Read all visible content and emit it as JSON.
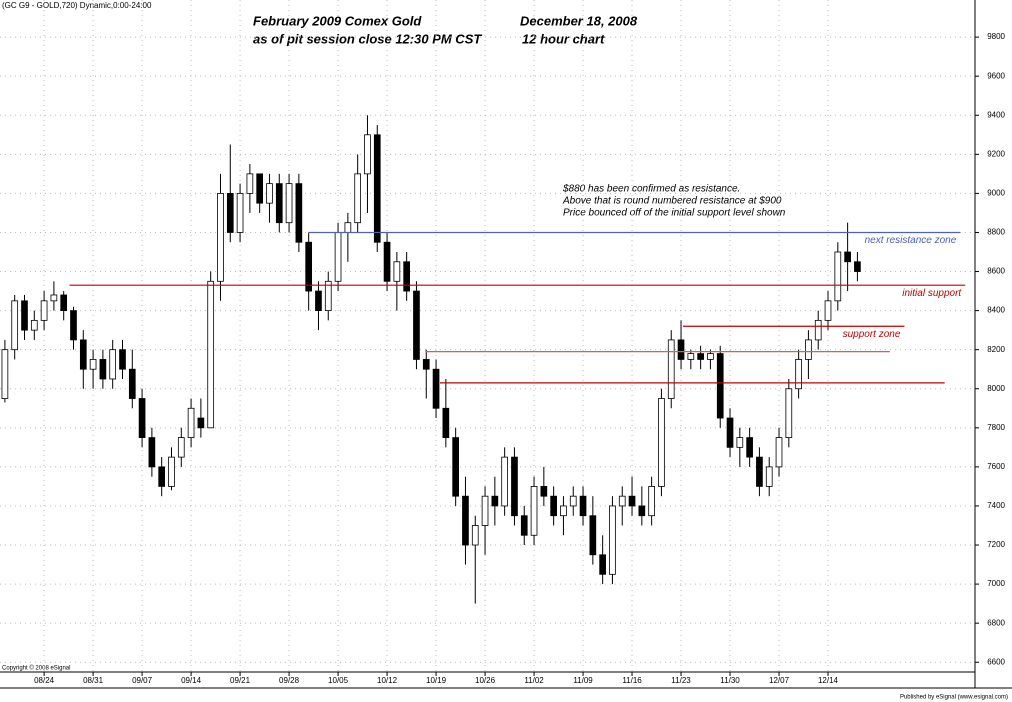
{
  "chart_data": {
    "type": "candlestick",
    "header": "(GC G9 - GOLD,720) Dynamic,0:00-24:00",
    "title": "February 2009 Comex Gold",
    "subtitle": "as of pit session close 12:30 PM CST",
    "date": "December 18, 2008",
    "timeframe": "12 hour chart",
    "notes": [
      "$880 has been confirmed as resistance.",
      "Above that is round numbered resistance at $900",
      "Price bounced off of the initial support level shown"
    ],
    "copyright": "Copyright © 2008 eSignal",
    "publisher": "Published by eSignal (www.esignal.com)",
    "up_color": "#ffffff",
    "down_color": "#000000",
    "grid": true,
    "xlim": [
      -0.5,
      99
    ],
    "ylim": [
      6550,
      9990
    ],
    "xticks": [
      {
        "value": 4,
        "label": "08/24"
      },
      {
        "value": 9,
        "label": "08/31"
      },
      {
        "value": 14,
        "label": "09/07"
      },
      {
        "value": 19,
        "label": "09/14"
      },
      {
        "value": 24,
        "label": "09/21"
      },
      {
        "value": 29,
        "label": "09/28"
      },
      {
        "value": 34,
        "label": "10/05"
      },
      {
        "value": 39,
        "label": "10/12"
      },
      {
        "value": 44,
        "label": "10/19"
      },
      {
        "value": 49,
        "label": "10/26"
      },
      {
        "value": 54,
        "label": "11/02"
      },
      {
        "value": 59,
        "label": "11/09"
      },
      {
        "value": 64,
        "label": "11/16"
      },
      {
        "value": 69,
        "label": "11/23"
      },
      {
        "value": 74,
        "label": "11/30"
      },
      {
        "value": 79,
        "label": "12/07"
      },
      {
        "value": 84,
        "label": "12/14"
      }
    ],
    "yticks": [
      6600,
      6800,
      7000,
      7200,
      7400,
      7600,
      7800,
      8000,
      8200,
      8400,
      8600,
      8800,
      9000,
      9200,
      9400,
      9600,
      9800
    ],
    "open": [
      7950,
      8200,
      8450,
      8300,
      8350,
      8450,
      8480,
      8400,
      8250,
      8100,
      8150,
      8050,
      8200,
      8100,
      7950,
      7750,
      7600,
      7500,
      7650,
      7750,
      7850,
      7800,
      8550,
      9000,
      8800,
      9000,
      9100,
      8950,
      9050,
      8850,
      9050,
      8750,
      8500,
      8400,
      8550,
      8800,
      8850,
      9100,
      9300,
      8750,
      8550,
      8650,
      8500,
      8150,
      8100,
      7900,
      7750,
      7450,
      7200,
      7300,
      7450,
      7400,
      7650,
      7350,
      7250,
      7500,
      7450,
      7350,
      7400,
      7450,
      7350,
      7150,
      7050,
      7400,
      7450,
      7400,
      7350,
      7500,
      7950,
      8250,
      8150,
      8180,
      8150,
      8180,
      7850,
      7700,
      7750,
      7650,
      7500,
      7600,
      7750,
      8000,
      8150,
      8250,
      8350,
      8450,
      8700,
      8650
    ],
    "high": [
      8250,
      8480,
      8480,
      8400,
      8500,
      8550,
      8500,
      8420,
      8300,
      8200,
      8200,
      8250,
      8250,
      8200,
      8000,
      7800,
      7650,
      7700,
      7800,
      7950,
      7950,
      8600,
      9100,
      9250,
      9050,
      9150,
      9100,
      9100,
      9100,
      9100,
      9100,
      8800,
      8550,
      8600,
      8850,
      8900,
      9200,
      9400,
      9350,
      8800,
      8700,
      8700,
      8550,
      8200,
      8150,
      8050,
      7800,
      7550,
      7350,
      7500,
      7550,
      7700,
      7700,
      7400,
      7550,
      7600,
      7500,
      7450,
      7500,
      7500,
      7450,
      7250,
      7450,
      7500,
      7550,
      7500,
      7550,
      8000,
      8300,
      8350,
      8200,
      8220,
      8200,
      8220,
      7900,
      7800,
      7800,
      7700,
      7650,
      7800,
      8050,
      8200,
      8300,
      8400,
      8500,
      8750,
      8850,
      8700
    ],
    "low": [
      7930,
      8150,
      8250,
      8250,
      8300,
      8400,
      8350,
      8200,
      8000,
      8000,
      8000,
      8000,
      8050,
      7900,
      7700,
      7550,
      7450,
      7480,
      7600,
      7700,
      7750,
      7800,
      8450,
      8750,
      8750,
      8900,
      8900,
      8850,
      8800,
      8800,
      8700,
      8400,
      8300,
      8350,
      8500,
      8650,
      8800,
      8900,
      8700,
      8500,
      8400,
      8450,
      8100,
      7950,
      7850,
      7700,
      7400,
      7100,
      6900,
      7150,
      7300,
      7350,
      7300,
      7200,
      7200,
      7400,
      7300,
      7250,
      7350,
      7300,
      7100,
      7000,
      7000,
      7300,
      7350,
      7300,
      7300,
      7450,
      7900,
      8100,
      8100,
      8100,
      8100,
      7800,
      7650,
      7600,
      7600,
      7450,
      7450,
      7550,
      7700,
      7950,
      8050,
      8200,
      8300,
      8400,
      8500,
      8550
    ],
    "close": [
      8200,
      8450,
      8300,
      8350,
      8450,
      8480,
      8400,
      8250,
      8100,
      8150,
      8050,
      8200,
      8100,
      7950,
      7750,
      7600,
      7500,
      7650,
      7750,
      7900,
      7800,
      8550,
      9000,
      8800,
      9000,
      9100,
      8950,
      9050,
      8850,
      9050,
      8750,
      8500,
      8400,
      8550,
      8800,
      8850,
      9100,
      9300,
      8750,
      8550,
      8650,
      8500,
      8150,
      8100,
      7900,
      7750,
      7450,
      7200,
      7300,
      7450,
      7400,
      7650,
      7350,
      7250,
      7500,
      7450,
      7350,
      7400,
      7450,
      7350,
      7150,
      7050,
      7400,
      7450,
      7400,
      7350,
      7500,
      7950,
      8250,
      8150,
      8180,
      8150,
      8180,
      7850,
      7700,
      7750,
      7650,
      7500,
      7600,
      7750,
      8000,
      8150,
      8250,
      8350,
      8450,
      8700,
      8650,
      8600
    ],
    "levels": [
      {
        "value": 8800,
        "from": 31,
        "to": 97.5,
        "color": "#5060b8",
        "label": "next resistance zone"
      },
      {
        "value": 8530,
        "from": 6.6,
        "to": 98,
        "color": "#c00000",
        "label": "initial support"
      },
      {
        "value": 8320,
        "from": 69.2,
        "to": 91.8,
        "color": "#c00000",
        "label": "support zone"
      },
      {
        "value": 8190,
        "from": 42.9,
        "to": 90.3,
        "color": "#d06060"
      },
      {
        "value": 8030,
        "from": 44.4,
        "to": 95.9,
        "color": "#c00000"
      }
    ]
  }
}
